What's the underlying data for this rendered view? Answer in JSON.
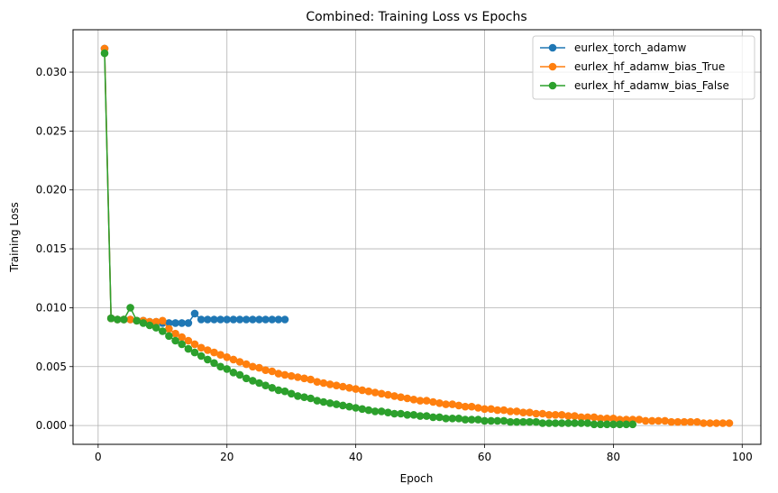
{
  "chart_data": {
    "type": "line",
    "title": "Combined: Training Loss vs Epochs",
    "xlabel": "Epoch",
    "ylabel": "Training Loss",
    "xlim": [
      -3.9,
      102.9
    ],
    "ylim": [
      -0.0016,
      0.0336
    ],
    "xticks": [
      0,
      20,
      40,
      60,
      80,
      100
    ],
    "yticks": [
      0.0,
      0.005,
      0.01,
      0.015,
      0.02,
      0.025,
      0.03
    ],
    "xtick_labels": [
      "0",
      "20",
      "40",
      "60",
      "80",
      "100"
    ],
    "ytick_labels": [
      "0.000",
      "0.005",
      "0.010",
      "0.015",
      "0.020",
      "0.025",
      "0.030"
    ],
    "grid": true,
    "legend_position": "top-right",
    "marker": "circle",
    "series": [
      {
        "name": "eurlex_torch_adamw",
        "color": "#1f77b4",
        "x": [
          1,
          2,
          3,
          4,
          5,
          6,
          7,
          8,
          9,
          10,
          11,
          12,
          13,
          14,
          15,
          16,
          17,
          18,
          19,
          20,
          21,
          22,
          23,
          24,
          25,
          26,
          27,
          28,
          29
        ],
        "y": [
          0.032,
          0.0091,
          0.009,
          0.009,
          0.009,
          0.0089,
          0.0089,
          0.0088,
          0.0088,
          0.0087,
          0.0087,
          0.0087,
          0.0087,
          0.0087,
          0.0095,
          0.009,
          0.009,
          0.009,
          0.009,
          0.009,
          0.009,
          0.009,
          0.009,
          0.009,
          0.009,
          0.009,
          0.009,
          0.009,
          0.009
        ]
      },
      {
        "name": "eurlex_hf_adamw_bias_True",
        "color": "#ff7f0e",
        "x": [
          1,
          2,
          3,
          4,
          5,
          6,
          7,
          8,
          9,
          10,
          11,
          12,
          13,
          14,
          15,
          16,
          17,
          18,
          19,
          20,
          21,
          22,
          23,
          24,
          25,
          26,
          27,
          28,
          29,
          30,
          31,
          32,
          33,
          34,
          35,
          36,
          37,
          38,
          39,
          40,
          41,
          42,
          43,
          44,
          45,
          46,
          47,
          48,
          49,
          50,
          51,
          52,
          53,
          54,
          55,
          56,
          57,
          58,
          59,
          60,
          61,
          62,
          63,
          64,
          65,
          66,
          67,
          68,
          69,
          70,
          71,
          72,
          73,
          74,
          75,
          76,
          77,
          78,
          79,
          80,
          81,
          82,
          83,
          84,
          85,
          86,
          87,
          88,
          89,
          90,
          91,
          92,
          93,
          94,
          95,
          96,
          97,
          98
        ],
        "y": [
          0.032,
          0.0091,
          0.009,
          0.009,
          0.009,
          0.0089,
          0.0089,
          0.0088,
          0.0088,
          0.0089,
          0.0082,
          0.0078,
          0.0075,
          0.0072,
          0.0069,
          0.0066,
          0.0064,
          0.0062,
          0.006,
          0.0058,
          0.0056,
          0.0054,
          0.0052,
          0.005,
          0.0049,
          0.0047,
          0.0046,
          0.0044,
          0.0043,
          0.0042,
          0.0041,
          0.004,
          0.0039,
          0.0037,
          0.0036,
          0.0035,
          0.0034,
          0.0033,
          0.0032,
          0.0031,
          0.003,
          0.0029,
          0.0028,
          0.0027,
          0.0026,
          0.0025,
          0.0024,
          0.0023,
          0.0022,
          0.0021,
          0.0021,
          0.002,
          0.0019,
          0.0018,
          0.0018,
          0.0017,
          0.0016,
          0.0016,
          0.0015,
          0.0014,
          0.0014,
          0.0013,
          0.0013,
          0.0012,
          0.0012,
          0.0011,
          0.0011,
          0.001,
          0.001,
          0.0009,
          0.0009,
          0.0009,
          0.0008,
          0.0008,
          0.0007,
          0.0007,
          0.0007,
          0.0006,
          0.0006,
          0.0006,
          0.0005,
          0.0005,
          0.0005,
          0.0005,
          0.0004,
          0.0004,
          0.0004,
          0.0004,
          0.0003,
          0.0003,
          0.0003,
          0.0003,
          0.0003,
          0.0002,
          0.0002,
          0.0002,
          0.0002,
          0.0002
        ]
      },
      {
        "name": "eurlex_hf_adamw_bias_False",
        "color": "#2ca02c",
        "x": [
          1,
          2,
          3,
          4,
          5,
          6,
          7,
          8,
          9,
          10,
          11,
          12,
          13,
          14,
          15,
          16,
          17,
          18,
          19,
          20,
          21,
          22,
          23,
          24,
          25,
          26,
          27,
          28,
          29,
          30,
          31,
          32,
          33,
          34,
          35,
          36,
          37,
          38,
          39,
          40,
          41,
          42,
          43,
          44,
          45,
          46,
          47,
          48,
          49,
          50,
          51,
          52,
          53,
          54,
          55,
          56,
          57,
          58,
          59,
          60,
          61,
          62,
          63,
          64,
          65,
          66,
          67,
          68,
          69,
          70,
          71,
          72,
          73,
          74,
          75,
          76,
          77,
          78,
          79,
          80,
          81,
          82,
          83
        ],
        "y": [
          0.0316,
          0.0091,
          0.009,
          0.009,
          0.01,
          0.0089,
          0.0087,
          0.0085,
          0.0083,
          0.008,
          0.0076,
          0.0072,
          0.0069,
          0.0065,
          0.0062,
          0.0059,
          0.0056,
          0.0053,
          0.005,
          0.0048,
          0.0045,
          0.0043,
          0.004,
          0.0038,
          0.0036,
          0.0034,
          0.0032,
          0.003,
          0.0029,
          0.0027,
          0.0025,
          0.0024,
          0.0023,
          0.0021,
          0.002,
          0.0019,
          0.0018,
          0.0017,
          0.0016,
          0.0015,
          0.0014,
          0.0013,
          0.0012,
          0.0012,
          0.0011,
          0.001,
          0.001,
          0.0009,
          0.0009,
          0.0008,
          0.0008,
          0.0007,
          0.0007,
          0.0006,
          0.0006,
          0.0006,
          0.0005,
          0.0005,
          0.0005,
          0.0004,
          0.0004,
          0.0004,
          0.0004,
          0.0003,
          0.0003,
          0.0003,
          0.0003,
          0.0003,
          0.0002,
          0.0002,
          0.0002,
          0.0002,
          0.0002,
          0.0002,
          0.0002,
          0.0002,
          0.0001,
          0.0001,
          0.0001,
          0.0001,
          0.0001,
          0.0001,
          0.0001
        ]
      }
    ]
  }
}
